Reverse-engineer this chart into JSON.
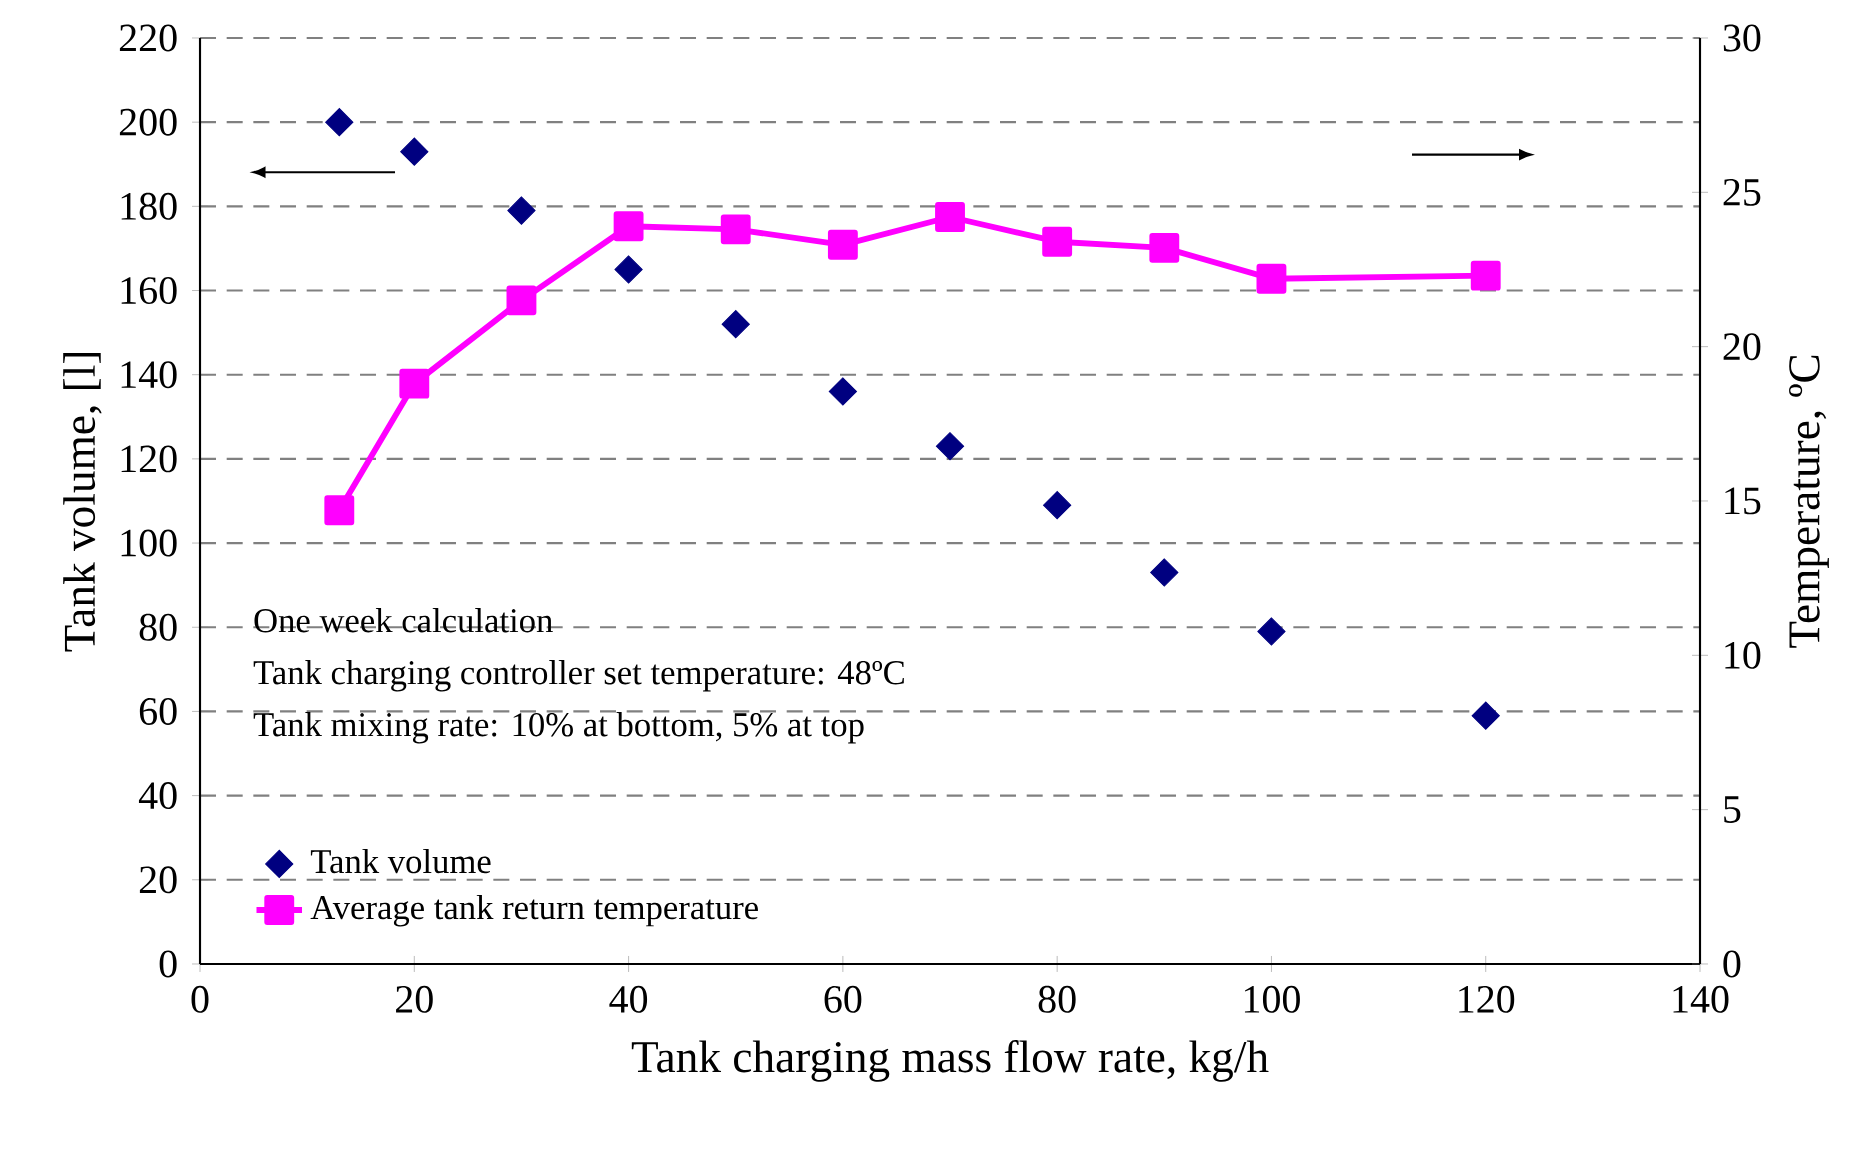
{
  "chart_data": {
    "type": "scatter",
    "xlabel": "Tank charging mass flow rate, kg/h",
    "ylabel": "Tank volume, [l]",
    "y2label": "Temperature, ºC",
    "xlim": [
      0,
      140
    ],
    "xticks": [
      0,
      20,
      40,
      60,
      80,
      100,
      120,
      140
    ],
    "ylim": [
      0,
      220
    ],
    "yticks": [
      0,
      20,
      40,
      60,
      80,
      100,
      120,
      140,
      160,
      180,
      200,
      220
    ],
    "y2lim": [
      0,
      30
    ],
    "y2ticks": [
      0,
      5,
      10,
      15,
      20,
      25,
      30
    ],
    "grid": "y",
    "legend": "bottom left",
    "annotations": [
      "One week calculation",
      "Tank charging controller set temperature: 48ºC",
      "Tank mixing rate: 10% at bottom, 5% at top"
    ],
    "series": [
      {
        "name": "Tank volume",
        "marker": "diamond",
        "color": "#000080",
        "x": [
          13,
          20,
          30,
          40,
          50,
          60,
          70,
          80,
          90,
          100,
          120
        ],
        "values": [
          200,
          193,
          179,
          165,
          152,
          136,
          123,
          109,
          93,
          79,
          59
        ]
      },
      {
        "name": "Average tank return temperature",
        "type": "line",
        "axis": "y2",
        "marker": "square",
        "line_style": "solid",
        "color": "#ff00ff",
        "x": [
          13,
          20,
          30,
          40,
          50,
          60,
          70,
          80,
          90,
          100,
          120
        ],
        "values": [
          14.7,
          18.8,
          21.5,
          23.9,
          23.8,
          23.3,
          24.2,
          23.4,
          23.2,
          22.2,
          22.3
        ]
      }
    ]
  }
}
